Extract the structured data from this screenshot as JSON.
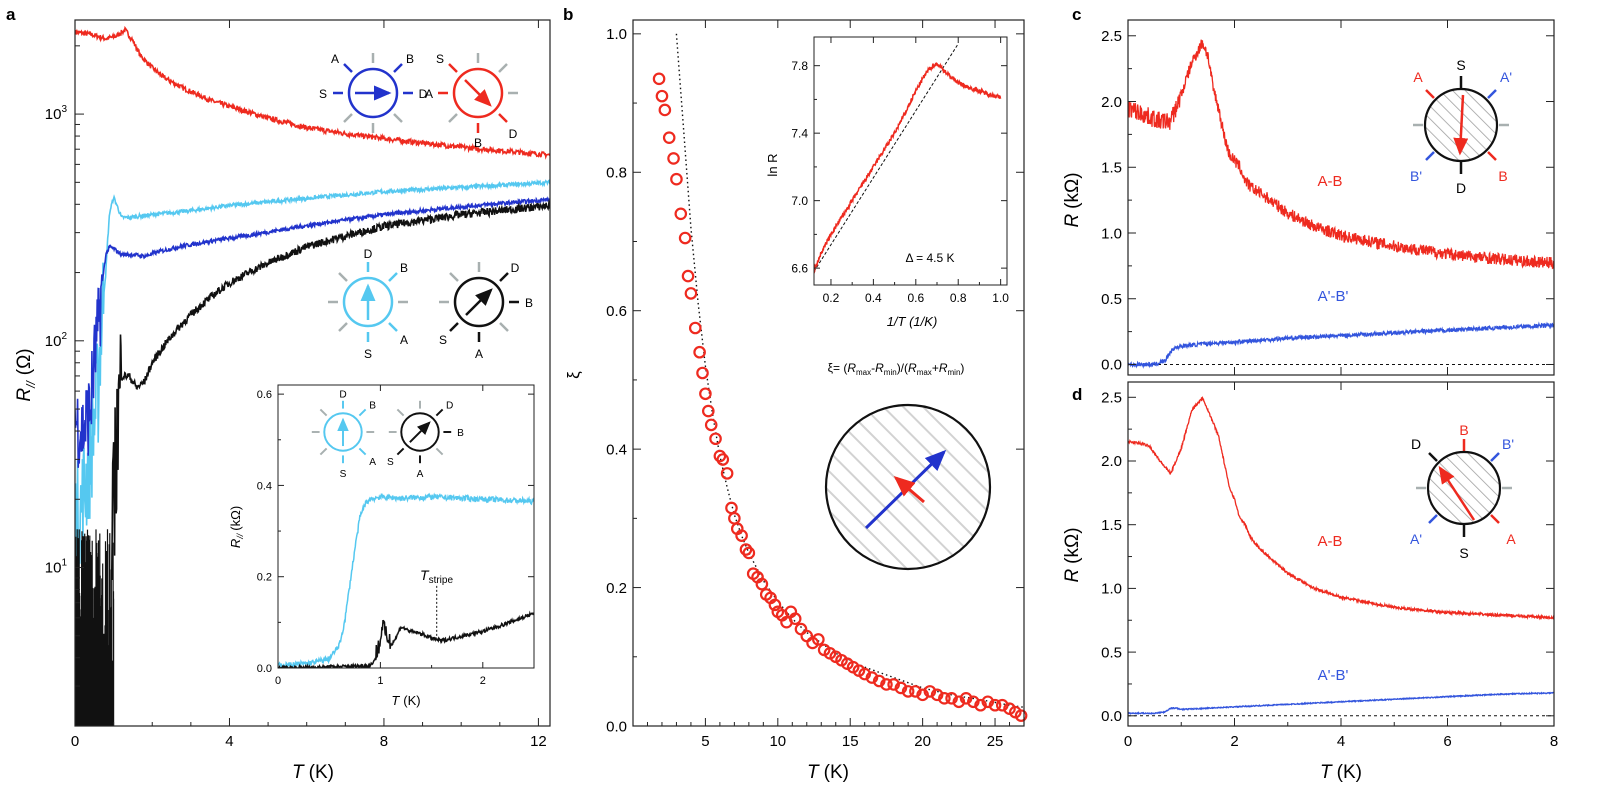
{
  "figure": {
    "panel_labels": [
      "a",
      "b",
      "c",
      "d"
    ]
  },
  "panel_a": {
    "ylabel_main": "R",
    "ylabel_sub": "//",
    "ylabel_unit": "(Ω)",
    "xlabel_main": "T",
    "xlabel_unit": "(K)",
    "xticks": [
      "0",
      "4",
      "8",
      "12"
    ],
    "yticks": [
      {
        "base": "10",
        "exp": "3",
        "value": 1000
      },
      {
        "base": "10",
        "exp": "2",
        "value": 100
      },
      {
        "base": "10",
        "exp": "1",
        "value": 10
      }
    ],
    "diagram_labels": {
      "d1": [
        "A",
        "B",
        "S",
        "D"
      ],
      "d2": [
        "S",
        "A",
        "B",
        "D"
      ],
      "d3": [
        "D",
        "B",
        "S",
        "A"
      ],
      "d4": [
        "D",
        "B",
        "S",
        "A"
      ]
    },
    "inset": {
      "ylabel_main": "R",
      "ylabel_sub": "//",
      "ylabel_unit": "(kΩ)",
      "xlabel_main": "T",
      "xlabel_unit": "(K)",
      "xticks": [
        "0",
        "1",
        "2"
      ],
      "yticks": [
        "0.0",
        "0.2",
        "0.4",
        "0.6"
      ],
      "tstripe_main": "T",
      "tstripe_sub": "stripe",
      "diagram_labels": {
        "d1": [
          "D",
          "B",
          "S",
          "A"
        ],
        "d2": [
          "D",
          "B",
          "S",
          "A"
        ]
      }
    }
  },
  "panel_b": {
    "ylabel": "ξ",
    "xlabel_main": "T",
    "xlabel_unit": "(K)",
    "xticks": [
      "5",
      "10",
      "15",
      "20",
      "25"
    ],
    "yticks": [
      "0.0",
      "0.2",
      "0.4",
      "0.6",
      "0.8",
      "1.0"
    ],
    "formula": "ξ= (Rₘₐₓ-Rₘᵢₙ)/(Rₘₐₓ+Rₘᵢₙ)",
    "formula_parts": [
      "ξ= (",
      "R",
      "max",
      "-",
      "R",
      "min",
      ")/(",
      "R",
      "max",
      "+",
      "R",
      "min",
      ")"
    ],
    "inset": {
      "ylabel": "ln R",
      "xlabel": "1/T (1/K)",
      "xticks": [
        "0.2",
        "0.4",
        "0.6",
        "0.8",
        "1.0"
      ],
      "yticks": [
        "6.6",
        "7.0",
        "7.4",
        "7.8"
      ],
      "annotation": "Δ = 4.5 K"
    }
  },
  "panel_c": {
    "ylabel_main": "R",
    "ylabel_unit": "(kΩ)",
    "yticks": [
      "0.0",
      "0.5",
      "1.0",
      "1.5",
      "2.0",
      "2.5"
    ],
    "series_labels": [
      "A-B",
      "A'-B'"
    ],
    "diagram_labels": {
      "S": "S",
      "A": "A",
      "A2": "A'",
      "B2": "B'",
      "B": "B",
      "D": "D"
    }
  },
  "panel_d": {
    "ylabel_main": "R",
    "ylabel_unit": "(kΩ)",
    "xlabel_main": "T",
    "xlabel_unit": "(K)",
    "xticks": [
      "0",
      "2",
      "4",
      "6",
      "8"
    ],
    "yticks": [
      "0.0",
      "0.5",
      "1.0",
      "1.5",
      "2.0",
      "2.5"
    ],
    "series_labels": [
      "A-B",
      "A'-B'"
    ],
    "diagram_labels": {
      "D": "D",
      "B": "B",
      "B2": "B'",
      "A2": "A'",
      "A": "A",
      "S": "S"
    }
  },
  "colors": {
    "red": "#ee2a1f",
    "lightblue": "#55c8f0",
    "blue": "#2233cc",
    "panel_c_blue": "#3355dd",
    "black": "#111111",
    "contact_gray": "#a8b0b0"
  },
  "chart_data": [
    {
      "panel": "a",
      "type": "line",
      "title": "",
      "xlabel": "T (K)",
      "ylabel": "R// (Ω)",
      "yscale": "log",
      "xlim": [
        0,
        12.3
      ],
      "ylim": [
        2,
        2600
      ],
      "series": [
        {
          "color": "red",
          "x": [
            0,
            0.4,
            0.8,
            1.05,
            1.3,
            1.5,
            1.7,
            2,
            2.3,
            2.8,
            3.5,
            4,
            5,
            6,
            7,
            8,
            9,
            10,
            11,
            12.3
          ],
          "values": [
            2300,
            2250,
            2150,
            2200,
            2350,
            2100,
            1800,
            1600,
            1450,
            1300,
            1150,
            1080,
            960,
            870,
            820,
            780,
            745,
            715,
            690,
            660
          ]
        },
        {
          "color": "lightblue",
          "x": [
            0,
            0.2,
            0.4,
            0.6,
            0.8,
            0.9,
            1,
            1.1,
            1.2,
            1.4,
            1.7,
            2,
            3,
            4,
            5,
            6,
            7,
            8,
            9,
            10,
            11,
            12.3
          ],
          "values": [
            15,
            20,
            30,
            60,
            200,
            370,
            430,
            390,
            350,
            350,
            355,
            360,
            375,
            395,
            410,
            425,
            440,
            455,
            465,
            475,
            485,
            500
          ]
        },
        {
          "color": "blue",
          "x": [
            0,
            0.2,
            0.4,
            0.6,
            0.8,
            0.9,
            1,
            1.2,
            1.5,
            1.8,
            2.2,
            2.8,
            3.5,
            4.5,
            6,
            8,
            10,
            12.3
          ],
          "values": [
            45,
            40,
            50,
            110,
            240,
            260,
            255,
            240,
            240,
            236,
            248,
            262,
            275,
            292,
            322,
            360,
            390,
            420
          ]
        },
        {
          "color": "black",
          "x": [
            0.95,
            1,
            1.1,
            1.2,
            1.4,
            1.6,
            1.8,
            2,
            2.5,
            3,
            3.5,
            4,
            5,
            6,
            7,
            8,
            9,
            10,
            11,
            12.3
          ],
          "values": [
            10,
            18,
            40,
            70,
            70,
            62,
            66,
            80,
            105,
            130,
            155,
            180,
            220,
            260,
            290,
            320,
            340,
            360,
            375,
            395
          ]
        }
      ]
    },
    {
      "panel": "a-inset",
      "type": "line",
      "xlabel": "T (K)",
      "ylabel": "R// (kΩ)",
      "xlim": [
        0,
        2.5
      ],
      "ylim": [
        0,
        0.62
      ],
      "series": [
        {
          "color": "lightblue",
          "x": [
            0,
            0.3,
            0.5,
            0.6,
            0.65,
            0.7,
            0.75,
            0.8,
            0.85,
            0.9,
            1,
            1.2,
            1.5,
            2,
            2.5
          ],
          "values": [
            0.005,
            0.01,
            0.02,
            0.05,
            0.1,
            0.18,
            0.26,
            0.33,
            0.36,
            0.37,
            0.375,
            0.372,
            0.375,
            0.37,
            0.365
          ]
        },
        {
          "color": "black",
          "x": [
            0,
            0.5,
            0.9,
            0.95,
            1,
            1.02,
            1.05,
            1.1,
            1.15,
            1.2,
            1.3,
            1.4,
            1.5,
            1.6,
            1.8,
            2,
            2.2,
            2.5
          ],
          "values": [
            0,
            0.002,
            0.005,
            0.02,
            0.05,
            0.09,
            0.065,
            0.05,
            0.065,
            0.09,
            0.08,
            0.075,
            0.065,
            0.06,
            0.07,
            0.08,
            0.095,
            0.12
          ]
        }
      ]
    },
    {
      "panel": "b",
      "type": "scatter",
      "xlabel": "T (K)",
      "ylabel": "ξ",
      "xlim": [
        0,
        27
      ],
      "ylim": [
        0,
        1.02
      ],
      "series": [
        {
          "color": "red",
          "x": [
            1.8,
            2.0,
            2.2,
            2.5,
            2.8,
            3.0,
            3.3,
            3.6,
            3.8,
            4.0,
            4.3,
            4.6,
            4.8,
            5.0,
            5.2,
            5.4,
            5.7,
            6.0,
            6.2,
            6.5,
            6.8,
            7.0,
            7.2,
            7.5,
            7.8,
            8.0,
            8.3,
            8.6,
            8.9,
            9.2,
            9.5,
            9.8,
            10.0,
            10.3,
            10.6,
            10.9,
            11.2,
            11.6,
            12.0,
            12.4,
            12.8,
            13.2,
            13.6,
            14.0,
            14.4,
            14.8,
            15.2,
            15.6,
            16.0,
            16.5,
            17.0,
            17.5,
            18.0,
            18.5,
            19.0,
            19.5,
            20.0,
            20.5,
            21.0,
            21.5,
            22.0,
            22.5,
            23.0,
            23.5,
            24.0,
            24.5,
            25.0,
            25.5,
            26.0,
            26.4,
            26.8
          ],
          "values": [
            0.935,
            0.91,
            0.89,
            0.85,
            0.82,
            0.79,
            0.74,
            0.705,
            0.65,
            0.625,
            0.575,
            0.54,
            0.51,
            0.48,
            0.455,
            0.435,
            0.415,
            0.39,
            0.385,
            0.365,
            0.315,
            0.3,
            0.285,
            0.275,
            0.255,
            0.25,
            0.22,
            0.215,
            0.205,
            0.19,
            0.185,
            0.175,
            0.165,
            0.16,
            0.15,
            0.165,
            0.155,
            0.14,
            0.13,
            0.12,
            0.125,
            0.11,
            0.105,
            0.1,
            0.095,
            0.09,
            0.085,
            0.08,
            0.075,
            0.07,
            0.065,
            0.06,
            0.06,
            0.055,
            0.05,
            0.05,
            0.045,
            0.05,
            0.045,
            0.04,
            0.04,
            0.035,
            0.04,
            0.035,
            0.03,
            0.035,
            0.03,
            0.03,
            0.025,
            0.02,
            0.015
          ]
        }
      ],
      "fit": {
        "style": "dotted",
        "x": [
          3,
          3.5,
          4,
          4.5,
          5,
          5.5,
          6,
          6.5,
          7,
          7.5,
          8,
          9,
          10,
          11,
          12,
          14,
          16,
          18,
          20,
          22,
          24,
          26,
          27
        ],
        "values": [
          1.0,
          0.86,
          0.72,
          0.61,
          0.52,
          0.45,
          0.39,
          0.345,
          0.305,
          0.275,
          0.25,
          0.21,
          0.18,
          0.155,
          0.135,
          0.105,
          0.085,
          0.07,
          0.055,
          0.045,
          0.038,
          0.03,
          0.027
        ]
      }
    },
    {
      "panel": "b-inset",
      "type": "line",
      "xlabel": "1/T (1/K)",
      "ylabel": "ln R",
      "xlim": [
        0.12,
        1.03
      ],
      "ylim": [
        6.5,
        7.97
      ],
      "series": [
        {
          "color": "red",
          "x": [
            0.12,
            0.15,
            0.2,
            0.25,
            0.3,
            0.35,
            0.4,
            0.45,
            0.5,
            0.55,
            0.6,
            0.65,
            0.68,
            0.7,
            0.72,
            0.75,
            0.8,
            0.85,
            0.9,
            0.95,
            1.0
          ],
          "values": [
            6.58,
            6.68,
            6.8,
            6.9,
            7.0,
            7.1,
            7.2,
            7.3,
            7.4,
            7.52,
            7.65,
            7.76,
            7.8,
            7.81,
            7.79,
            7.75,
            7.7,
            7.67,
            7.65,
            7.63,
            7.61
          ]
        }
      ],
      "fit": {
        "style": "dashed",
        "x": [
          0.12,
          0.8
        ],
        "values": [
          6.58,
          7.93
        ]
      }
    },
    {
      "panel": "c",
      "type": "line",
      "ylabel": "R (kΩ)",
      "xlim": [
        0,
        8
      ],
      "ylim": [
        -0.08,
        2.62
      ],
      "series": [
        {
          "name": "A-B",
          "color": "red",
          "x": [
            0,
            0.3,
            0.6,
            0.8,
            1.0,
            1.2,
            1.4,
            1.5,
            1.6,
            1.7,
            1.8,
            1.9,
            2.0,
            2.1,
            2.2,
            2.3,
            2.5,
            3,
            3.5,
            4,
            5,
            6,
            7,
            8
          ],
          "values": [
            1.95,
            1.9,
            1.85,
            1.85,
            2.05,
            2.3,
            2.45,
            2.35,
            2.1,
            1.95,
            1.75,
            1.6,
            1.55,
            1.5,
            1.4,
            1.35,
            1.3,
            1.15,
            1.05,
            0.98,
            0.9,
            0.84,
            0.8,
            0.77
          ]
        },
        {
          "name": "A'-B'",
          "color": "blue",
          "x": [
            0,
            0.5,
            0.7,
            0.8,
            0.9,
            1.0,
            1.5,
            2,
            3,
            4,
            5,
            6,
            7,
            8
          ],
          "values": [
            0.0,
            0.0,
            0.03,
            0.1,
            0.13,
            0.14,
            0.16,
            0.17,
            0.2,
            0.22,
            0.24,
            0.26,
            0.28,
            0.3
          ]
        }
      ]
    },
    {
      "panel": "d",
      "type": "line",
      "xlabel": "T (K)",
      "ylabel": "R (kΩ)",
      "xlim": [
        0,
        8
      ],
      "ylim": [
        -0.08,
        2.62
      ],
      "series": [
        {
          "name": "A-B",
          "color": "red",
          "x": [
            0,
            0.2,
            0.4,
            0.6,
            0.8,
            1.0,
            1.2,
            1.4,
            1.5,
            1.6,
            1.7,
            1.8,
            1.9,
            2.0,
            2.1,
            2.2,
            2.3,
            2.5,
            3,
            3.5,
            4,
            5,
            6,
            7,
            8
          ],
          "values": [
            2.15,
            2.14,
            2.12,
            2.0,
            1.9,
            2.1,
            2.4,
            2.5,
            2.4,
            2.3,
            2.2,
            2.0,
            1.8,
            1.7,
            1.55,
            1.5,
            1.4,
            1.3,
            1.12,
            1.0,
            0.93,
            0.85,
            0.81,
            0.79,
            0.77
          ]
        },
        {
          "name": "A'-B'",
          "color": "blue",
          "x": [
            0,
            0.5,
            0.7,
            0.8,
            0.9,
            1.0,
            1.5,
            2,
            3,
            4,
            5,
            6,
            7,
            8
          ],
          "values": [
            0.02,
            0.02,
            0.03,
            0.06,
            0.06,
            0.05,
            0.06,
            0.07,
            0.09,
            0.11,
            0.13,
            0.15,
            0.17,
            0.18
          ]
        }
      ]
    }
  ]
}
